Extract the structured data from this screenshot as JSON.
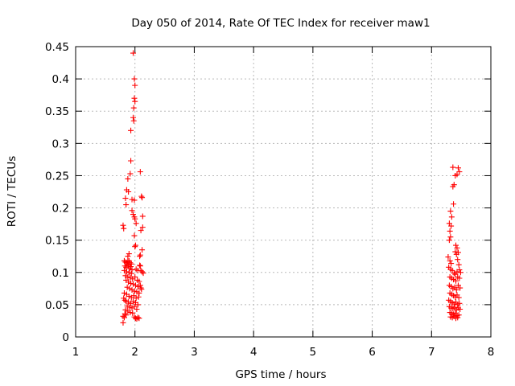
{
  "chart_data": {
    "type": "scatter",
    "title": "Day 050 of 2014, Rate Of TEC Index for receiver maw1",
    "xlabel": "GPS time / hours",
    "ylabel": "ROTI / TECUs",
    "xlim": [
      1,
      8
    ],
    "ylim": [
      0,
      0.45
    ],
    "x_ticks": [
      "1",
      "2",
      "3",
      "4",
      "5",
      "6",
      "7",
      "8"
    ],
    "y_ticks": [
      "0",
      "0.05",
      "0.1",
      "0.15",
      "0.2",
      "0.25",
      "0.3",
      "0.35",
      "0.4",
      "0.45"
    ],
    "grid": true,
    "marker": "+",
    "color": "#ff0000",
    "series": [
      {
        "name": "ROTI",
        "points": [
          [
            1.97,
            0.44
          ],
          [
            1.99,
            0.4
          ],
          [
            2.0,
            0.39
          ],
          [
            1.99,
            0.37
          ],
          [
            2.0,
            0.365
          ],
          [
            1.98,
            0.355
          ],
          [
            1.97,
            0.34
          ],
          [
            1.98,
            0.335
          ],
          [
            1.93,
            0.32
          ],
          [
            1.93,
            0.273
          ],
          [
            2.09,
            0.256
          ],
          [
            1.92,
            0.253
          ],
          [
            1.88,
            0.245
          ],
          [
            1.86,
            0.228
          ],
          [
            1.89,
            0.225
          ],
          [
            1.84,
            0.215
          ],
          [
            2.11,
            0.218
          ],
          [
            2.12,
            0.216
          ],
          [
            1.95,
            0.213
          ],
          [
            1.99,
            0.212
          ],
          [
            1.85,
            0.205
          ],
          [
            1.95,
            0.196
          ],
          [
            1.97,
            0.19
          ],
          [
            1.99,
            0.186
          ],
          [
            2.0,
            0.183
          ],
          [
            2.13,
            0.187
          ],
          [
            1.8,
            0.173
          ],
          [
            1.81,
            0.168
          ],
          [
            2.02,
            0.176
          ],
          [
            2.13,
            0.17
          ],
          [
            2.1,
            0.165
          ],
          [
            1.99,
            0.157
          ],
          [
            2.01,
            0.142
          ],
          [
            2.0,
            0.14
          ],
          [
            2.12,
            0.135
          ],
          [
            1.9,
            0.129
          ],
          [
            1.88,
            0.125
          ],
          [
            2.09,
            0.127
          ],
          [
            2.08,
            0.125
          ],
          [
            1.82,
            0.118
          ],
          [
            1.84,
            0.116
          ],
          [
            1.86,
            0.115
          ],
          [
            1.88,
            0.117
          ],
          [
            1.9,
            0.118
          ],
          [
            1.92,
            0.115
          ],
          [
            1.94,
            0.113
          ],
          [
            1.83,
            0.11
          ],
          [
            1.85,
            0.108
          ],
          [
            1.87,
            0.112
          ],
          [
            1.89,
            0.11
          ],
          [
            1.91,
            0.106
          ],
          [
            1.93,
            0.109
          ],
          [
            1.95,
            0.104
          ],
          [
            1.82,
            0.103
          ],
          [
            1.86,
            0.101
          ],
          [
            1.9,
            0.1
          ],
          [
            1.94,
            0.098
          ],
          [
            2.02,
            0.105
          ],
          [
            2.05,
            0.103
          ],
          [
            2.1,
            0.103
          ],
          [
            2.12,
            0.101
          ],
          [
            2.14,
            0.099
          ],
          [
            2.08,
            0.111
          ],
          [
            2.09,
            0.11
          ],
          [
            1.84,
            0.095
          ],
          [
            1.88,
            0.093
          ],
          [
            1.92,
            0.092
          ],
          [
            1.96,
            0.09
          ],
          [
            2.0,
            0.093
          ],
          [
            2.04,
            0.088
          ],
          [
            2.07,
            0.086
          ],
          [
            1.85,
            0.088
          ],
          [
            1.89,
            0.085
          ],
          [
            1.93,
            0.083
          ],
          [
            1.97,
            0.082
          ],
          [
            2.01,
            0.08
          ],
          [
            2.05,
            0.078
          ],
          [
            2.09,
            0.08
          ],
          [
            2.1,
            0.076
          ],
          [
            1.87,
            0.077
          ],
          [
            1.91,
            0.075
          ],
          [
            1.95,
            0.073
          ],
          [
            1.99,
            0.071
          ],
          [
            2.03,
            0.07
          ],
          [
            2.07,
            0.068
          ],
          [
            2.11,
            0.074
          ],
          [
            1.82,
            0.068
          ],
          [
            1.86,
            0.066
          ],
          [
            1.9,
            0.063
          ],
          [
            1.94,
            0.061
          ],
          [
            1.98,
            0.064
          ],
          [
            2.02,
            0.06
          ],
          [
            2.06,
            0.062
          ],
          [
            1.81,
            0.06
          ],
          [
            1.83,
            0.057
          ],
          [
            1.85,
            0.055
          ],
          [
            1.89,
            0.054
          ],
          [
            1.93,
            0.052
          ],
          [
            1.97,
            0.055
          ],
          [
            2.01,
            0.053
          ],
          [
            2.05,
            0.05
          ],
          [
            1.87,
            0.048
          ],
          [
            1.91,
            0.046
          ],
          [
            1.95,
            0.045
          ],
          [
            1.99,
            0.047
          ],
          [
            2.03,
            0.043
          ],
          [
            1.84,
            0.042
          ],
          [
            1.88,
            0.04
          ],
          [
            1.92,
            0.038
          ],
          [
            1.96,
            0.037
          ],
          [
            1.83,
            0.036
          ],
          [
            1.85,
            0.034
          ],
          [
            1.8,
            0.032
          ],
          [
            1.82,
            0.03
          ],
          [
            1.99,
            0.031
          ],
          [
            2.01,
            0.029
          ],
          [
            2.03,
            0.028
          ],
          [
            2.05,
            0.03
          ],
          [
            2.07,
            0.029
          ],
          [
            1.8,
            0.022
          ],
          [
            7.36,
            0.263
          ],
          [
            7.45,
            0.262
          ],
          [
            7.47,
            0.256
          ],
          [
            7.43,
            0.252
          ],
          [
            7.4,
            0.25
          ],
          [
            7.38,
            0.236
          ],
          [
            7.36,
            0.233
          ],
          [
            7.37,
            0.206
          ],
          [
            7.32,
            0.195
          ],
          [
            7.34,
            0.186
          ],
          [
            7.3,
            0.176
          ],
          [
            7.33,
            0.172
          ],
          [
            7.31,
            0.164
          ],
          [
            7.32,
            0.155
          ],
          [
            7.3,
            0.15
          ],
          [
            7.41,
            0.142
          ],
          [
            7.43,
            0.138
          ],
          [
            7.45,
            0.131
          ],
          [
            7.42,
            0.128
          ],
          [
            7.4,
            0.132
          ],
          [
            7.28,
            0.124
          ],
          [
            7.31,
            0.118
          ],
          [
            7.33,
            0.114
          ],
          [
            7.44,
            0.12
          ],
          [
            7.46,
            0.112
          ],
          [
            7.29,
            0.108
          ],
          [
            7.32,
            0.105
          ],
          [
            7.35,
            0.103
          ],
          [
            7.38,
            0.099
          ],
          [
            7.4,
            0.097
          ],
          [
            7.43,
            0.101
          ],
          [
            7.47,
            0.104
          ],
          [
            7.49,
            0.1
          ],
          [
            7.31,
            0.093
          ],
          [
            7.34,
            0.091
          ],
          [
            7.37,
            0.089
          ],
          [
            7.41,
            0.087
          ],
          [
            7.44,
            0.093
          ],
          [
            7.47,
            0.091
          ],
          [
            7.3,
            0.08
          ],
          [
            7.33,
            0.078
          ],
          [
            7.36,
            0.075
          ],
          [
            7.39,
            0.077
          ],
          [
            7.42,
            0.073
          ],
          [
            7.45,
            0.08
          ],
          [
            7.48,
            0.076
          ],
          [
            7.31,
            0.068
          ],
          [
            7.34,
            0.066
          ],
          [
            7.37,
            0.064
          ],
          [
            7.4,
            0.062
          ],
          [
            7.43,
            0.065
          ],
          [
            7.46,
            0.061
          ],
          [
            7.29,
            0.057
          ],
          [
            7.32,
            0.055
          ],
          [
            7.35,
            0.053
          ],
          [
            7.38,
            0.051
          ],
          [
            7.41,
            0.054
          ],
          [
            7.44,
            0.05
          ],
          [
            7.47,
            0.052
          ],
          [
            7.3,
            0.047
          ],
          [
            7.33,
            0.045
          ],
          [
            7.36,
            0.044
          ],
          [
            7.39,
            0.046
          ],
          [
            7.42,
            0.042
          ],
          [
            7.45,
            0.045
          ],
          [
            7.48,
            0.043
          ],
          [
            7.31,
            0.038
          ],
          [
            7.34,
            0.036
          ],
          [
            7.37,
            0.035
          ],
          [
            7.4,
            0.037
          ],
          [
            7.43,
            0.033
          ],
          [
            7.46,
            0.034
          ],
          [
            7.32,
            0.031
          ],
          [
            7.35,
            0.03
          ],
          [
            7.38,
            0.032
          ],
          [
            7.41,
            0.029
          ],
          [
            7.44,
            0.03
          ]
        ]
      }
    ]
  }
}
